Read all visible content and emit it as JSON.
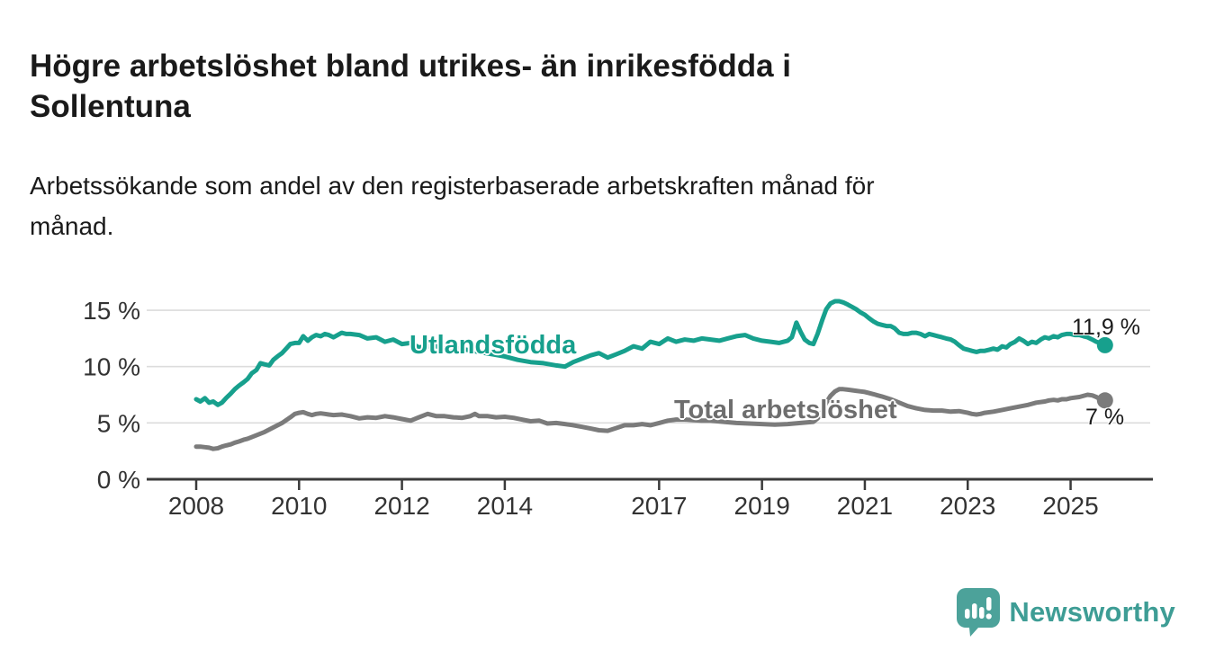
{
  "header": {
    "title": "Högre arbetslöshet bland utrikes- än inrikesfödda i Sollentuna",
    "title_lines": [
      "Högre arbetslöshet bland utrikes- än inrikesfödda i",
      "Sollentuna"
    ],
    "subtitle": "Arbetssökande som andel av den registerbaserade arbetskraften månad för månad.",
    "subtitle_lines": [
      "Arbetssökande som andel av den registerbaserade arbetskraften månad för",
      "månad."
    ]
  },
  "footer": {
    "brand": "Newsworthy"
  },
  "colors": {
    "accent_teal": "#17a08d",
    "line_gray": "#7b7b7b",
    "series_label_gray": "#6e6e6e",
    "text": "#1a1a1a",
    "tick_text": "#333333",
    "grid": "#dcdcdc",
    "axis": "#3a3a3a",
    "logo_teal": "#4ca29a",
    "logo_text_teal": "#3e9d95"
  },
  "chart_data": {
    "type": "line",
    "title": "Högre arbetslöshet bland utrikes- än inrikesfödda i Sollentuna",
    "subtitle": "Arbetssökande som andel av den registerbaserade arbetskraften månad för månad.",
    "xlabel": "",
    "ylabel": "",
    "x_unit": "year (monthly data)",
    "y_unit": "%",
    "xlim": [
      2008,
      2026.3
    ],
    "ylim": [
      0,
      16.5
    ],
    "grid": "horizontal",
    "legend": "inline-labels",
    "x_ticks": [
      2008,
      2010,
      2012,
      2014,
      2017,
      2019,
      2021,
      2023,
      2025
    ],
    "y_ticks": [
      0,
      5,
      10,
      15
    ],
    "y_tick_labels": [
      "0 %",
      "5 %",
      "10 %",
      "15 %"
    ],
    "series": [
      {
        "id": "utlandsfodda",
        "name": "Utlandsfödda",
        "color": "#17a08d",
        "end_label": "11,9 %",
        "end_value": 11.9,
        "points": [
          [
            2008.0,
            7.1
          ],
          [
            2008.08,
            6.9
          ],
          [
            2008.17,
            7.2
          ],
          [
            2008.25,
            6.8
          ],
          [
            2008.33,
            6.9
          ],
          [
            2008.42,
            6.6
          ],
          [
            2008.5,
            6.8
          ],
          [
            2008.58,
            7.2
          ],
          [
            2008.67,
            7.6
          ],
          [
            2008.75,
            8.0
          ],
          [
            2008.83,
            8.3
          ],
          [
            2008.92,
            8.6
          ],
          [
            2009.0,
            8.9
          ],
          [
            2009.08,
            9.4
          ],
          [
            2009.17,
            9.7
          ],
          [
            2009.25,
            10.3
          ],
          [
            2009.33,
            10.2
          ],
          [
            2009.42,
            10.1
          ],
          [
            2009.5,
            10.6
          ],
          [
            2009.58,
            10.9
          ],
          [
            2009.67,
            11.2
          ],
          [
            2009.75,
            11.6
          ],
          [
            2009.83,
            12.0
          ],
          [
            2009.92,
            12.1
          ],
          [
            2010.0,
            12.1
          ],
          [
            2010.08,
            12.7
          ],
          [
            2010.17,
            12.3
          ],
          [
            2010.25,
            12.6
          ],
          [
            2010.33,
            12.8
          ],
          [
            2010.42,
            12.7
          ],
          [
            2010.5,
            12.9
          ],
          [
            2010.58,
            12.8
          ],
          [
            2010.67,
            12.6
          ],
          [
            2010.75,
            12.8
          ],
          [
            2010.83,
            13.0
          ],
          [
            2010.92,
            12.9
          ],
          [
            2011.0,
            12.9
          ],
          [
            2011.17,
            12.8
          ],
          [
            2011.33,
            12.5
          ],
          [
            2011.5,
            12.6
          ],
          [
            2011.67,
            12.2
          ],
          [
            2011.83,
            12.4
          ],
          [
            2012.0,
            12.0
          ],
          [
            2012.17,
            12.1
          ],
          [
            2012.33,
            11.7
          ],
          [
            2012.5,
            11.8
          ],
          [
            2012.67,
            11.8
          ],
          [
            2012.83,
            11.6
          ],
          [
            2013.0,
            11.7
          ],
          [
            2013.25,
            11.5
          ],
          [
            2013.5,
            11.3
          ],
          [
            2013.75,
            11.1
          ],
          [
            2014.0,
            10.9
          ],
          [
            2014.25,
            10.6
          ],
          [
            2014.5,
            10.4
          ],
          [
            2014.75,
            10.3
          ],
          [
            2015.0,
            10.1
          ],
          [
            2015.17,
            10.0
          ],
          [
            2015.33,
            10.4
          ],
          [
            2015.5,
            10.7
          ],
          [
            2015.67,
            11.0
          ],
          [
            2015.83,
            11.2
          ],
          [
            2016.0,
            10.8
          ],
          [
            2016.17,
            11.1
          ],
          [
            2016.33,
            11.4
          ],
          [
            2016.5,
            11.8
          ],
          [
            2016.67,
            11.6
          ],
          [
            2016.83,
            12.2
          ],
          [
            2017.0,
            12.0
          ],
          [
            2017.17,
            12.5
          ],
          [
            2017.33,
            12.2
          ],
          [
            2017.5,
            12.4
          ],
          [
            2017.67,
            12.3
          ],
          [
            2017.83,
            12.5
          ],
          [
            2018.0,
            12.4
          ],
          [
            2018.17,
            12.3
          ],
          [
            2018.33,
            12.5
          ],
          [
            2018.5,
            12.7
          ],
          [
            2018.67,
            12.8
          ],
          [
            2018.83,
            12.5
          ],
          [
            2019.0,
            12.3
          ],
          [
            2019.17,
            12.2
          ],
          [
            2019.33,
            12.1
          ],
          [
            2019.5,
            12.3
          ],
          [
            2019.58,
            12.6
          ],
          [
            2019.67,
            13.9
          ],
          [
            2019.75,
            13.1
          ],
          [
            2019.83,
            12.4
          ],
          [
            2019.92,
            12.1
          ],
          [
            2020.0,
            12.0
          ],
          [
            2020.08,
            12.9
          ],
          [
            2020.17,
            14.1
          ],
          [
            2020.25,
            15.1
          ],
          [
            2020.33,
            15.6
          ],
          [
            2020.42,
            15.8
          ],
          [
            2020.5,
            15.8
          ],
          [
            2020.58,
            15.7
          ],
          [
            2020.67,
            15.5
          ],
          [
            2020.75,
            15.3
          ],
          [
            2020.83,
            15.1
          ],
          [
            2020.92,
            14.8
          ],
          [
            2021.0,
            14.6
          ],
          [
            2021.08,
            14.3
          ],
          [
            2021.17,
            14.0
          ],
          [
            2021.25,
            13.8
          ],
          [
            2021.33,
            13.7
          ],
          [
            2021.42,
            13.6
          ],
          [
            2021.5,
            13.6
          ],
          [
            2021.58,
            13.4
          ],
          [
            2021.67,
            13.0
          ],
          [
            2021.75,
            12.9
          ],
          [
            2021.83,
            12.9
          ],
          [
            2021.92,
            13.0
          ],
          [
            2022.0,
            13.0
          ],
          [
            2022.08,
            12.9
          ],
          [
            2022.17,
            12.7
          ],
          [
            2022.25,
            12.9
          ],
          [
            2022.33,
            12.8
          ],
          [
            2022.42,
            12.7
          ],
          [
            2022.5,
            12.6
          ],
          [
            2022.58,
            12.5
          ],
          [
            2022.67,
            12.4
          ],
          [
            2022.75,
            12.2
          ],
          [
            2022.83,
            11.9
          ],
          [
            2022.92,
            11.6
          ],
          [
            2023.0,
            11.5
          ],
          [
            2023.08,
            11.4
          ],
          [
            2023.17,
            11.3
          ],
          [
            2023.25,
            11.4
          ],
          [
            2023.33,
            11.4
          ],
          [
            2023.42,
            11.5
          ],
          [
            2023.5,
            11.6
          ],
          [
            2023.58,
            11.5
          ],
          [
            2023.67,
            11.8
          ],
          [
            2023.75,
            11.7
          ],
          [
            2023.83,
            12.0
          ],
          [
            2023.92,
            12.2
          ],
          [
            2024.0,
            12.5
          ],
          [
            2024.08,
            12.3
          ],
          [
            2024.17,
            12.0
          ],
          [
            2024.25,
            12.2
          ],
          [
            2024.33,
            12.1
          ],
          [
            2024.42,
            12.4
          ],
          [
            2024.5,
            12.6
          ],
          [
            2024.58,
            12.5
          ],
          [
            2024.67,
            12.7
          ],
          [
            2024.75,
            12.6
          ],
          [
            2024.83,
            12.8
          ],
          [
            2024.92,
            12.9
          ],
          [
            2025.0,
            12.9
          ],
          [
            2025.08,
            12.8
          ],
          [
            2025.17,
            12.8
          ],
          [
            2025.25,
            12.7
          ],
          [
            2025.33,
            12.6
          ],
          [
            2025.42,
            12.4
          ],
          [
            2025.5,
            12.2
          ],
          [
            2025.58,
            12.1
          ],
          [
            2025.67,
            11.9
          ]
        ]
      },
      {
        "id": "total",
        "name": "Total arbetslöshet",
        "color": "#7b7b7b",
        "end_label": "7 %",
        "end_value": 7.0,
        "points": [
          [
            2008.0,
            2.9
          ],
          [
            2008.08,
            2.9
          ],
          [
            2008.17,
            2.85
          ],
          [
            2008.25,
            2.8
          ],
          [
            2008.33,
            2.7
          ],
          [
            2008.42,
            2.75
          ],
          [
            2008.5,
            2.9
          ],
          [
            2008.58,
            3.0
          ],
          [
            2008.67,
            3.1
          ],
          [
            2008.75,
            3.25
          ],
          [
            2008.83,
            3.35
          ],
          [
            2008.92,
            3.5
          ],
          [
            2009.0,
            3.6
          ],
          [
            2009.17,
            3.9
          ],
          [
            2009.33,
            4.2
          ],
          [
            2009.5,
            4.6
          ],
          [
            2009.67,
            5.0
          ],
          [
            2009.83,
            5.5
          ],
          [
            2009.92,
            5.8
          ],
          [
            2010.0,
            5.9
          ],
          [
            2010.08,
            5.95
          ],
          [
            2010.17,
            5.8
          ],
          [
            2010.25,
            5.7
          ],
          [
            2010.33,
            5.8
          ],
          [
            2010.42,
            5.85
          ],
          [
            2010.5,
            5.8
          ],
          [
            2010.58,
            5.75
          ],
          [
            2010.67,
            5.7
          ],
          [
            2010.83,
            5.75
          ],
          [
            2011.0,
            5.6
          ],
          [
            2011.17,
            5.4
          ],
          [
            2011.33,
            5.5
          ],
          [
            2011.5,
            5.45
          ],
          [
            2011.67,
            5.6
          ],
          [
            2011.83,
            5.5
          ],
          [
            2012.0,
            5.35
          ],
          [
            2012.17,
            5.2
          ],
          [
            2012.33,
            5.5
          ],
          [
            2012.5,
            5.8
          ],
          [
            2012.67,
            5.6
          ],
          [
            2012.83,
            5.6
          ],
          [
            2013.0,
            5.5
          ],
          [
            2013.17,
            5.45
          ],
          [
            2013.33,
            5.6
          ],
          [
            2013.42,
            5.8
          ],
          [
            2013.5,
            5.6
          ],
          [
            2013.67,
            5.6
          ],
          [
            2013.83,
            5.5
          ],
          [
            2014.0,
            5.55
          ],
          [
            2014.17,
            5.45
          ],
          [
            2014.33,
            5.3
          ],
          [
            2014.5,
            5.15
          ],
          [
            2014.67,
            5.2
          ],
          [
            2014.83,
            4.95
          ],
          [
            2015.0,
            5.0
          ],
          [
            2015.17,
            4.9
          ],
          [
            2015.33,
            4.8
          ],
          [
            2015.5,
            4.65
          ],
          [
            2015.67,
            4.5
          ],
          [
            2015.83,
            4.35
          ],
          [
            2016.0,
            4.3
          ],
          [
            2016.17,
            4.55
          ],
          [
            2016.33,
            4.8
          ],
          [
            2016.5,
            4.8
          ],
          [
            2016.67,
            4.9
          ],
          [
            2016.83,
            4.8
          ],
          [
            2017.0,
            5.0
          ],
          [
            2017.17,
            5.2
          ],
          [
            2017.33,
            5.3
          ],
          [
            2017.5,
            5.3
          ],
          [
            2017.67,
            5.25
          ],
          [
            2017.83,
            5.2
          ],
          [
            2018.0,
            5.2
          ],
          [
            2018.25,
            5.1
          ],
          [
            2018.5,
            5.0
          ],
          [
            2018.75,
            4.95
          ],
          [
            2019.0,
            4.9
          ],
          [
            2019.25,
            4.85
          ],
          [
            2019.5,
            4.9
          ],
          [
            2019.75,
            5.0
          ],
          [
            2020.0,
            5.1
          ],
          [
            2020.08,
            5.4
          ],
          [
            2020.17,
            6.0
          ],
          [
            2020.25,
            6.8
          ],
          [
            2020.33,
            7.4
          ],
          [
            2020.42,
            7.8
          ],
          [
            2020.5,
            8.0
          ],
          [
            2020.58,
            8.0
          ],
          [
            2020.67,
            7.95
          ],
          [
            2020.75,
            7.9
          ],
          [
            2020.83,
            7.85
          ],
          [
            2020.92,
            7.8
          ],
          [
            2021.0,
            7.75
          ],
          [
            2021.08,
            7.65
          ],
          [
            2021.17,
            7.55
          ],
          [
            2021.25,
            7.45
          ],
          [
            2021.33,
            7.35
          ],
          [
            2021.5,
            7.1
          ],
          [
            2021.67,
            6.8
          ],
          [
            2021.83,
            6.5
          ],
          [
            2022.0,
            6.3
          ],
          [
            2022.17,
            6.15
          ],
          [
            2022.33,
            6.1
          ],
          [
            2022.5,
            6.1
          ],
          [
            2022.67,
            6.0
          ],
          [
            2022.83,
            6.05
          ],
          [
            2023.0,
            5.9
          ],
          [
            2023.08,
            5.8
          ],
          [
            2023.17,
            5.75
          ],
          [
            2023.25,
            5.8
          ],
          [
            2023.33,
            5.9
          ],
          [
            2023.5,
            6.0
          ],
          [
            2023.67,
            6.15
          ],
          [
            2023.83,
            6.3
          ],
          [
            2024.0,
            6.45
          ],
          [
            2024.17,
            6.6
          ],
          [
            2024.33,
            6.8
          ],
          [
            2024.5,
            6.9
          ],
          [
            2024.58,
            7.0
          ],
          [
            2024.67,
            7.05
          ],
          [
            2024.75,
            7.0
          ],
          [
            2024.83,
            7.1
          ],
          [
            2024.92,
            7.1
          ],
          [
            2025.0,
            7.2
          ],
          [
            2025.17,
            7.3
          ],
          [
            2025.33,
            7.5
          ],
          [
            2025.42,
            7.45
          ],
          [
            2025.5,
            7.3
          ],
          [
            2025.58,
            7.1
          ],
          [
            2025.67,
            7.0
          ]
        ]
      }
    ]
  }
}
